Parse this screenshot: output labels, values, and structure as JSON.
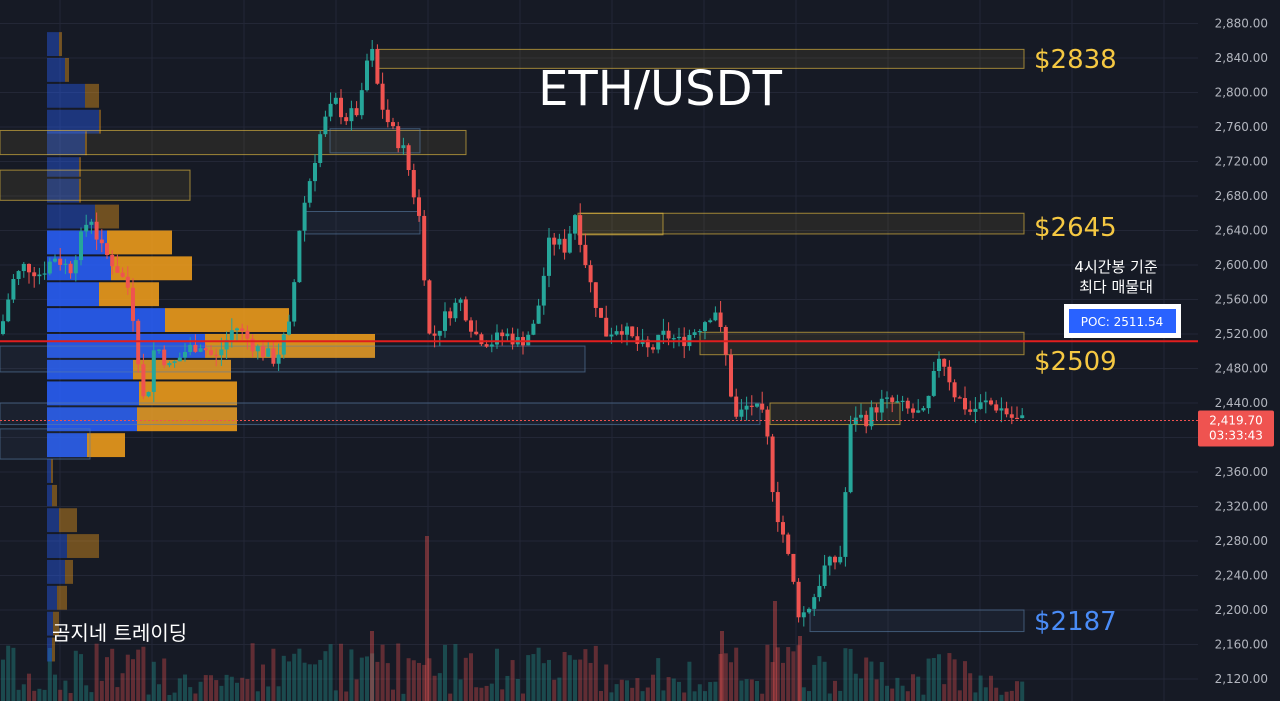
{
  "chart_data": {
    "type": "candlestick",
    "title": "ETH/USDT",
    "y_axis": {
      "ticks": [
        2120,
        2160,
        2200,
        2240,
        2280,
        2320,
        2360,
        2400,
        2440,
        2480,
        2520,
        2560,
        2600,
        2640,
        2680,
        2720,
        2760,
        2800,
        2840,
        2880
      ],
      "tick_labels": [
        "2,120.00",
        "2,160.00",
        "2,200.00",
        "2,240.00",
        "2,280.00",
        "2,320.00",
        "2,360.00",
        "2,400.00",
        "2,440.00",
        "2,480.00",
        "2,520.00",
        "2,560.00",
        "2,600.00",
        "2,640.00",
        "2,680.00",
        "2,720.00",
        "2,760.00",
        "2,800.00",
        "2,840.00",
        "2,880.00"
      ],
      "range": [
        2100,
        2895
      ]
    },
    "current_price": {
      "value": 2419.7,
      "label": "2,419.70",
      "countdown": "03:33:43"
    },
    "poc": {
      "value": 2511.54,
      "label": "POC: 2511.54"
    },
    "levels": [
      {
        "label": "$2838",
        "value": 2838,
        "color": "#f5c842"
      },
      {
        "label": "$2645",
        "value": 2645,
        "color": "#f5c842"
      },
      {
        "label": "$2509",
        "value": 2509,
        "color": "#f5c842"
      },
      {
        "label": "$2187",
        "value": 2187,
        "color": "#4a8cf7"
      }
    ],
    "annotation": {
      "line1": "4시간봉 기준",
      "line2": "최다 매물대"
    },
    "brand": "곰지네 트레이딩",
    "colors": {
      "up": "#26a69a",
      "down": "#ef5350",
      "profile_blue": "#2962ff",
      "profile_orange": "#f7a21b",
      "poc_line": "#e01e1e",
      "background": "#161a25"
    },
    "anchors": [
      [
        0,
        2520
      ],
      [
        12,
        2580
      ],
      [
        25,
        2600
      ],
      [
        40,
        2590
      ],
      [
        55,
        2610
      ],
      [
        70,
        2595
      ],
      [
        90,
        2660
      ],
      [
        100,
        2620
      ],
      [
        115,
        2600
      ],
      [
        130,
        2570
      ],
      [
        145,
        2430
      ],
      [
        155,
        2510
      ],
      [
        170,
        2480
      ],
      [
        185,
        2500
      ],
      [
        200,
        2510
      ],
      [
        215,
        2490
      ],
      [
        235,
        2530
      ],
      [
        255,
        2505
      ],
      [
        275,
        2490
      ],
      [
        290,
        2530
      ],
      [
        300,
        2650
      ],
      [
        312,
        2710
      ],
      [
        322,
        2760
      ],
      [
        335,
        2790
      ],
      [
        345,
        2770
      ],
      [
        360,
        2780
      ],
      [
        370,
        2860
      ],
      [
        380,
        2790
      ],
      [
        390,
        2760
      ],
      [
        405,
        2730
      ],
      [
        420,
        2650
      ],
      [
        430,
        2510
      ],
      [
        445,
        2540
      ],
      [
        460,
        2560
      ],
      [
        475,
        2520
      ],
      [
        490,
        2510
      ],
      [
        505,
        2520
      ],
      [
        520,
        2510
      ],
      [
        535,
        2530
      ],
      [
        550,
        2630
      ],
      [
        565,
        2620
      ],
      [
        575,
        2660
      ],
      [
        590,
        2580
      ],
      [
        605,
        2520
      ],
      [
        620,
        2530
      ],
      [
        635,
        2510
      ],
      [
        650,
        2500
      ],
      [
        665,
        2520
      ],
      [
        680,
        2510
      ],
      [
        700,
        2530
      ],
      [
        715,
        2550
      ],
      [
        725,
        2500
      ],
      [
        735,
        2420
      ],
      [
        750,
        2440
      ],
      [
        765,
        2420
      ],
      [
        775,
        2320
      ],
      [
        785,
        2280
      ],
      [
        800,
        2190
      ],
      [
        812,
        2210
      ],
      [
        825,
        2250
      ],
      [
        840,
        2260
      ],
      [
        852,
        2430
      ],
      [
        865,
        2420
      ],
      [
        880,
        2440
      ],
      [
        895,
        2440
      ],
      [
        910,
        2430
      ],
      [
        925,
        2425
      ],
      [
        940,
        2500
      ],
      [
        955,
        2450
      ],
      [
        970,
        2430
      ],
      [
        985,
        2440
      ],
      [
        1000,
        2435
      ],
      [
        1015,
        2420
      ],
      [
        1025,
        2419.7
      ]
    ],
    "profile": [
      {
        "y0": 2840,
        "y1": 2870,
        "blue": 12,
        "orange": 15
      },
      {
        "y0": 2810,
        "y1": 2840,
        "blue": 18,
        "orange": 22
      },
      {
        "y0": 2780,
        "y1": 2810,
        "blue": 38,
        "orange": 28
      },
      {
        "y0": 2750,
        "y1": 2780,
        "blue": 52,
        "orange": 54
      },
      {
        "y0": 2725,
        "y1": 2755,
        "blue": 38,
        "orange": 40
      },
      {
        "y0": 2700,
        "y1": 2725,
        "blue": 32,
        "orange": 34
      },
      {
        "y0": 2670,
        "y1": 2700,
        "blue": 32,
        "orange": 34
      },
      {
        "y0": 2640,
        "y1": 2670,
        "blue": 48,
        "orange": 48
      },
      {
        "y0": 2610,
        "y1": 2640,
        "blue": 60,
        "orange": 125
      },
      {
        "y0": 2580,
        "y1": 2610,
        "blue": 64,
        "orange": 145
      },
      {
        "y0": 2550,
        "y1": 2580,
        "blue": 52,
        "orange": 112
      },
      {
        "y0": 2520,
        "y1": 2550,
        "blue": 118,
        "orange": 242
      },
      {
        "y0": 2490,
        "y1": 2520,
        "blue": 158,
        "orange": 328
      },
      {
        "y0": 2465,
        "y1": 2490,
        "blue": 86,
        "orange": 184
      },
      {
        "y0": 2435,
        "y1": 2465,
        "blue": 92,
        "orange": 190
      },
      {
        "y0": 2405,
        "y1": 2435,
        "blue": 90,
        "orange": 190
      },
      {
        "y0": 2375,
        "y1": 2405,
        "blue": 40,
        "orange": 78
      },
      {
        "y0": 2345,
        "y1": 2375,
        "blue": 4,
        "orange": 6
      },
      {
        "y0": 2318,
        "y1": 2345,
        "blue": 5,
        "orange": 10
      },
      {
        "y0": 2288,
        "y1": 2318,
        "blue": 12,
        "orange": 30
      },
      {
        "y0": 2258,
        "y1": 2288,
        "blue": 20,
        "orange": 52
      },
      {
        "y0": 2228,
        "y1": 2258,
        "blue": 18,
        "orange": 26
      },
      {
        "y0": 2198,
        "y1": 2228,
        "blue": 10,
        "orange": 20
      },
      {
        "y0": 2168,
        "y1": 2198,
        "blue": 6,
        "orange": 12
      },
      {
        "y0": 2138,
        "y1": 2168,
        "blue": 5,
        "orange": 8
      }
    ]
  }
}
